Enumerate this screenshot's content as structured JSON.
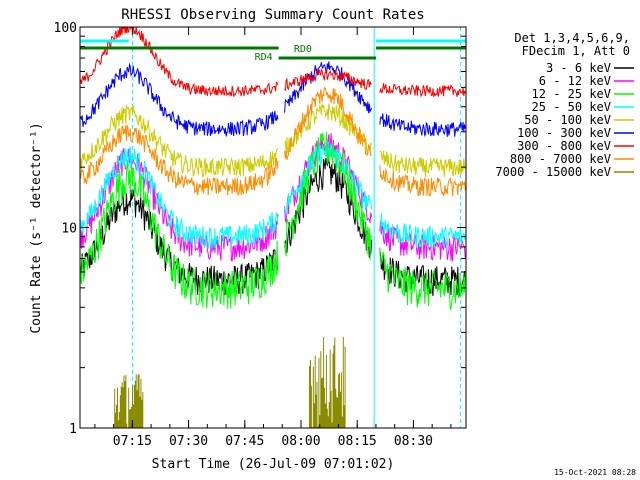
{
  "chart_data": {
    "type": "line",
    "title": "RHESSI Observing Summary Count Rates",
    "xlabel": "Start Time (26-Jul-09 07:01:02)",
    "ylabel": "Count Rate (s⁻¹ detector⁻¹)",
    "yscale": "log",
    "ylim": [
      1,
      100
    ],
    "xlim_minutes_after_0701": [
      0,
      103
    ],
    "x_ticks": [
      {
        "label": "07:15",
        "t": 13.97
      },
      {
        "label": "07:30",
        "t": 28.97
      },
      {
        "label": "07:45",
        "t": 43.97
      },
      {
        "label": "08:00",
        "t": 58.97
      },
      {
        "label": "08:15",
        "t": 73.97
      },
      {
        "label": "08:30",
        "t": 88.97
      }
    ],
    "y_ticks": [
      {
        "label": "1",
        "v": 1
      },
      {
        "label": "10",
        "v": 10
      },
      {
        "label": "100",
        "v": 100
      }
    ],
    "legend": {
      "placement": "top-right, outside plot",
      "header_lines": [
        "Det 1,3,4,5,6,9,",
        "FDecim 1, Att 0"
      ]
    },
    "series": [
      {
        "name": "3 - 6 keV",
        "color": "#000000",
        "base": 5.5,
        "peak1": 14,
        "peak2": 19,
        "noise": 0.08
      },
      {
        "name": "6 - 12 keV",
        "color": "#ff00ff",
        "base": 8.0,
        "peak1": 22,
        "peak2": 26,
        "noise": 0.07
      },
      {
        "name": "12 - 25 keV",
        "color": "#00ff00",
        "base": 5.0,
        "peak1": 18,
        "peak2": 25,
        "noise": 0.1
      },
      {
        "name": "25 - 50 keV",
        "color": "#00ffff",
        "base": 9.0,
        "peak1": 23,
        "peak2": 24,
        "noise": 0.06
      },
      {
        "name": "50 - 100 keV",
        "color": "#cccc00",
        "base": 20.0,
        "peak1": 37,
        "peak2": 38,
        "noise": 0.05
      },
      {
        "name": "100 - 300 keV",
        "color": "#0000ff",
        "base": 31.0,
        "peak1": 60,
        "peak2": 63,
        "noise": 0.04
      },
      {
        "name": "300 - 800 keV",
        "color": "#ff0000",
        "base": 48.0,
        "peak1": 100,
        "peak2": 58,
        "noise": 0.03
      },
      {
        "name": "800 - 7000 keV",
        "color": "#ff8c00",
        "base": 16.0,
        "peak1": 30,
        "peak2": 47,
        "noise": 0.05
      },
      {
        "name": "7000 - 15000 keV",
        "color": "#8b8b00",
        "base": 1.0,
        "peak1": 1.9,
        "peak2": 2.9,
        "noise": 0.0
      }
    ],
    "peak_times_min": [
      13,
      66
    ],
    "attenuator_gaps_min": [
      [
        53,
        54.5
      ],
      [
        78,
        80
      ]
    ],
    "annotations": [
      {
        "text": "RD4",
        "color": "#007700",
        "t": 53
      },
      {
        "text": "RD0",
        "color": "#007700",
        "t": 56
      }
    ],
    "green_segments": [
      [
        0,
        53
      ],
      [
        53,
        79
      ],
      [
        79,
        103
      ]
    ],
    "cyan_segments": [
      [
        0,
        13
      ],
      [
        79,
        103
      ]
    ],
    "vertical_markers": [
      {
        "t": 0,
        "style": "solid",
        "color": "#00ffff"
      },
      {
        "t": 14,
        "style": "dashed",
        "color": "#00ffff"
      },
      {
        "t": 78.5,
        "style": "solid",
        "color": "#00ffff"
      },
      {
        "t": 101.5,
        "style": "dashed",
        "color": "#00ffff"
      }
    ]
  },
  "footer": {
    "timestamp": "15-Oct-2021 08:28"
  }
}
